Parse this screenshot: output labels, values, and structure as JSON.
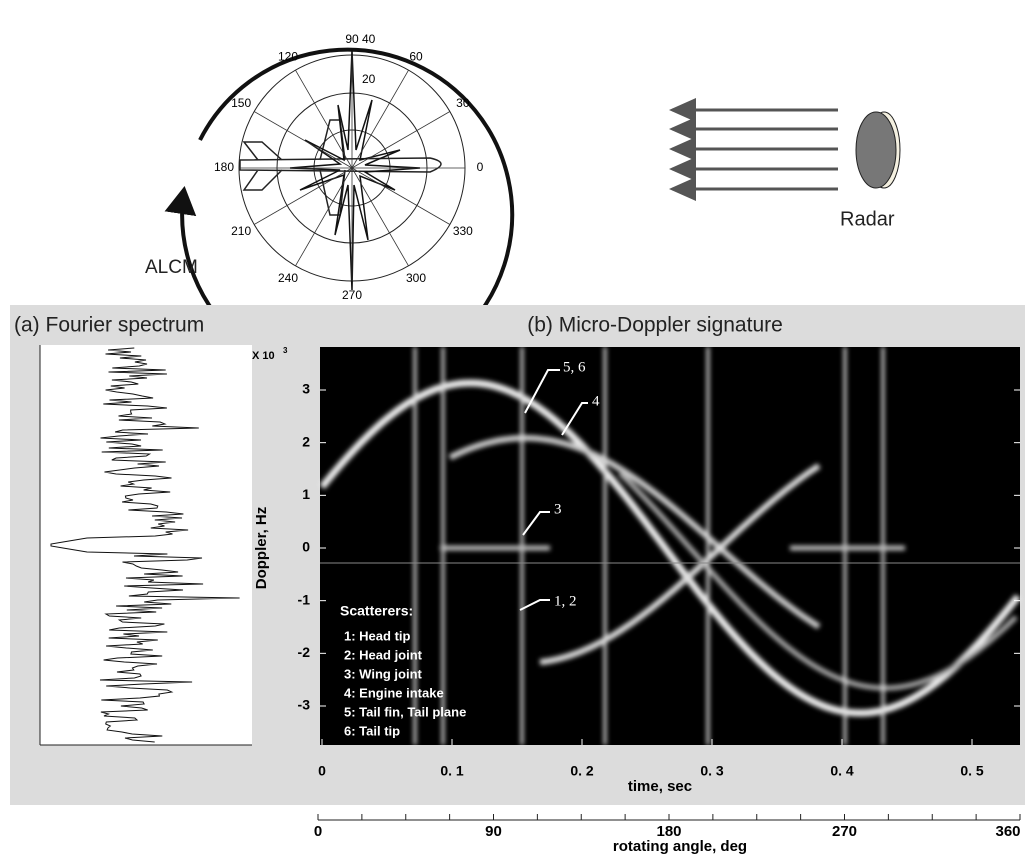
{
  "polar": {
    "angle_labels": [
      "0",
      "30",
      "60",
      "90",
      "120",
      "150",
      "180",
      "210",
      "240",
      "270",
      "300",
      "330"
    ],
    "radial_labels": [
      "20",
      "40"
    ],
    "target_label": "ALCM"
  },
  "radar": {
    "label": "Radar"
  },
  "fourier": {
    "title": "(a) Fourier spectrum"
  },
  "micro_doppler": {
    "title": "(b) Micro-Doppler signature",
    "y_label": "Doppler, Hz",
    "y_multiplier": "X 10",
    "y_exponent": "3",
    "yticks": [
      "3",
      "2",
      "1",
      "0",
      "-1",
      "-2",
      "-3"
    ],
    "x_label": "time, sec",
    "xticks": [
      "0",
      "0. 1",
      "0. 2",
      "0. 3",
      "0. 4",
      "0. 5"
    ],
    "annotations": [
      "5, 6",
      "4",
      "3",
      "1, 2"
    ],
    "legend_title": "Scatterers:",
    "legend": [
      "1: Head tip",
      "2: Head joint",
      "3: Wing joint",
      "4: Engine intake",
      "5: Tail fin, Tail plane",
      "6: Tail tip"
    ]
  },
  "angle_axis": {
    "label": "rotating angle, deg",
    "ticks": [
      "0",
      "90",
      "180",
      "270",
      "360"
    ]
  }
}
